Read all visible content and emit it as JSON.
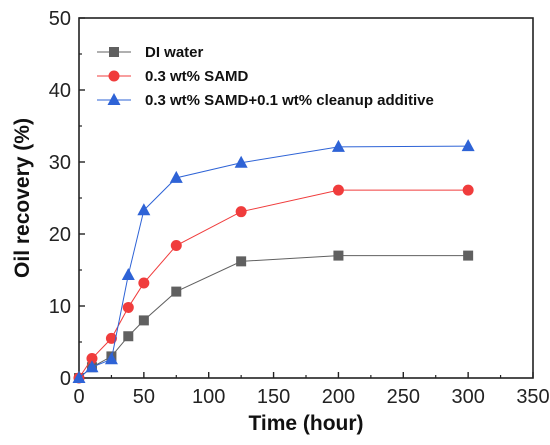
{
  "chart_data": {
    "type": "line",
    "title": "",
    "xlabel": "Time (hour)",
    "ylabel": "Oil recovery  (%)",
    "xlim": [
      0,
      350
    ],
    "ylim": [
      0,
      50
    ],
    "xticks": [
      0,
      50,
      100,
      150,
      200,
      250,
      300,
      350
    ],
    "yticks": [
      0,
      10,
      20,
      30,
      40,
      50
    ],
    "grid": false,
    "legend_position": "top-left",
    "series": [
      {
        "name": "DI water",
        "color": "#606060",
        "marker": "square",
        "x": [
          0,
          10,
          25,
          38,
          50,
          75,
          125,
          200,
          300
        ],
        "y": [
          0,
          1.5,
          3.0,
          5.8,
          8.0,
          12.0,
          16.2,
          17.0,
          17.0
        ]
      },
      {
        "name": "0.3 wt% SAMD",
        "color": "#f03c3c",
        "marker": "circle",
        "x": [
          0,
          10,
          25,
          38,
          50,
          75,
          125,
          200,
          300
        ],
        "y": [
          0,
          2.7,
          5.5,
          9.8,
          13.2,
          18.4,
          23.1,
          26.1,
          26.1
        ]
      },
      {
        "name": "0.3 wt% SAMD+0.1 wt% cleanup additive",
        "color": "#2e63d6",
        "marker": "triangle",
        "x": [
          0,
          10,
          25,
          38,
          50,
          75,
          125,
          200,
          300
        ],
        "y": [
          0,
          1.5,
          2.6,
          14.3,
          23.3,
          27.8,
          29.9,
          32.1,
          32.2
        ]
      }
    ]
  }
}
